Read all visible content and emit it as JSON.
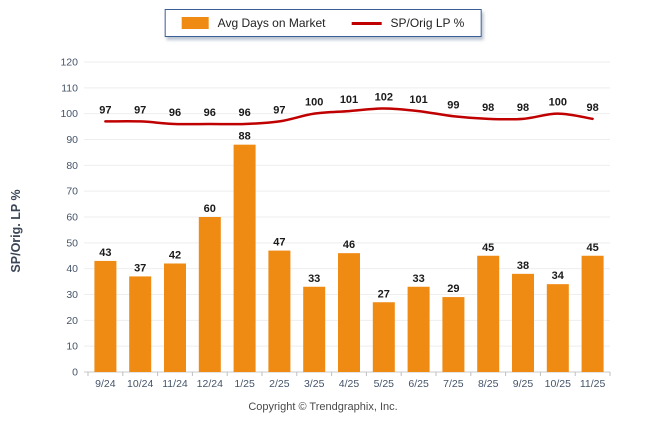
{
  "footer": {
    "copyright": "Copyright © Trendgraphix, Inc."
  },
  "chart_data": {
    "type": "combo",
    "categories": [
      "9/24",
      "10/24",
      "11/24",
      "12/24",
      "1/25",
      "2/25",
      "3/25",
      "4/25",
      "5/25",
      "6/25",
      "7/25",
      "8/25",
      "9/25",
      "10/25",
      "11/25"
    ],
    "series": [
      {
        "name": "Avg Days on Market",
        "type": "bar",
        "color": "#EF8A12",
        "values": [
          43,
          37,
          42,
          60,
          88,
          47,
          33,
          46,
          27,
          33,
          29,
          45,
          38,
          34,
          45
        ]
      },
      {
        "name": "SP/Orig LP %",
        "type": "line",
        "color": "#C00000",
        "values": [
          97,
          97,
          96,
          96,
          96,
          97,
          100,
          101,
          102,
          101,
          99,
          98,
          98,
          100,
          98
        ]
      }
    ],
    "ylabel": "SP/Orig. LP %",
    "ylim": [
      0,
      120
    ],
    "ytick_step": 10,
    "grid": true,
    "legend_position": "top",
    "colors": {
      "grid": "#EEEEEE",
      "baseline": "#C9C9C9",
      "axis_tick_text": "#44546A",
      "data_label": "#1a1a1a",
      "legend_border": "#3B5E96"
    }
  }
}
